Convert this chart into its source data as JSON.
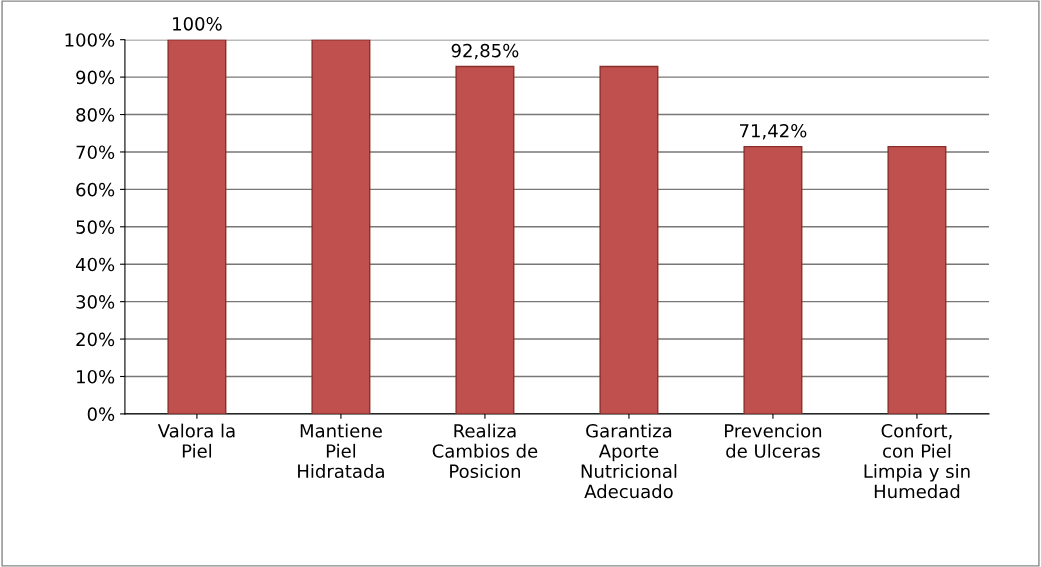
{
  "chart_data": {
    "type": "bar",
    "categories": [
      "Valora la\nPiel",
      "Mantiene\nPiel\nHidratada",
      "Realiza\nCambios de\nPosicion",
      "Garantiza\nAporte\nNutricional\nAdecuado",
      "Prevencion\nde Ulceras",
      "Confort,\ncon Piel\nLimpia y sin\nHumedad"
    ],
    "values": [
      100,
      100,
      92.85,
      92.85,
      71.42,
      71.42
    ],
    "value_labels": [
      "100%",
      null,
      "92,85%",
      null,
      "71,42%",
      null
    ],
    "color": "#c0504d",
    "ylim": [
      0,
      100
    ],
    "yticks": [
      {
        "value": 0,
        "label": "0%"
      },
      {
        "value": 10,
        "label": "10%"
      },
      {
        "value": 20,
        "label": "20%"
      },
      {
        "value": 30,
        "label": "30%"
      },
      {
        "value": 40,
        "label": "40%"
      },
      {
        "value": 50,
        "label": "50%"
      },
      {
        "value": 60,
        "label": "60%"
      },
      {
        "value": 70,
        "label": "70%"
      },
      {
        "value": 80,
        "label": "80%"
      },
      {
        "value": 90,
        "label": "90%"
      },
      {
        "value": 100,
        "label": "100%"
      }
    ],
    "grid": "y"
  }
}
